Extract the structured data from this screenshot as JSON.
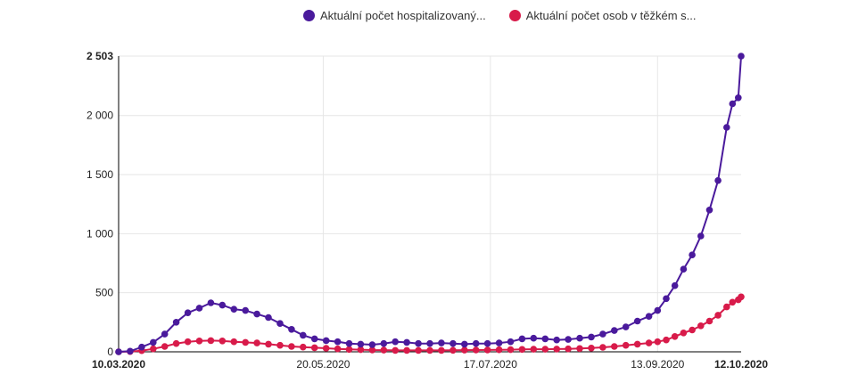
{
  "chart_data": {
    "type": "line",
    "title": "",
    "xlabel": "",
    "ylabel": "",
    "ylim": [
      0,
      2503
    ],
    "x_range": [
      "10.03.2020",
      "12.10.2020"
    ],
    "y_ticks": [
      {
        "value": 0,
        "label": "0"
      },
      {
        "value": 500,
        "label": "500"
      },
      {
        "value": 1000,
        "label": "1 000"
      },
      {
        "value": 1500,
        "label": "1 500"
      },
      {
        "value": 2000,
        "label": "2 000"
      },
      {
        "value": 2503,
        "label": "2 503",
        "bold": true
      }
    ],
    "x_ticks": [
      {
        "date": "10.03.2020",
        "label": "10.03.2020",
        "bold": true
      },
      {
        "date": "20.05.2020",
        "label": "20.05.2020"
      },
      {
        "date": "17.07.2020",
        "label": "17.07.2020"
      },
      {
        "date": "13.09.2020",
        "label": "13.09.2020"
      },
      {
        "date": "12.10.2020",
        "label": "12.10.2020",
        "bold": true
      }
    ],
    "grid": true,
    "legend_position": "top-right",
    "series": [
      {
        "name": "Aktuální počet hospitalizovaný...",
        "color": "#4a1a9c",
        "points": [
          [
            "10.03.2020",
            0
          ],
          [
            "14.03.2020",
            5
          ],
          [
            "18.03.2020",
            40
          ],
          [
            "22.03.2020",
            80
          ],
          [
            "26.03.2020",
            150
          ],
          [
            "30.03.2020",
            250
          ],
          [
            "03.04.2020",
            330
          ],
          [
            "07.04.2020",
            370
          ],
          [
            "11.04.2020",
            415
          ],
          [
            "15.04.2020",
            395
          ],
          [
            "19.04.2020",
            360
          ],
          [
            "23.04.2020",
            350
          ],
          [
            "27.04.2020",
            320
          ],
          [
            "01.05.2020",
            290
          ],
          [
            "05.05.2020",
            240
          ],
          [
            "09.05.2020",
            190
          ],
          [
            "13.05.2020",
            140
          ],
          [
            "17.05.2020",
            110
          ],
          [
            "21.05.2020",
            95
          ],
          [
            "25.05.2020",
            85
          ],
          [
            "29.05.2020",
            70
          ],
          [
            "02.06.2020",
            65
          ],
          [
            "06.06.2020",
            60
          ],
          [
            "10.06.2020",
            70
          ],
          [
            "14.06.2020",
            85
          ],
          [
            "18.06.2020",
            80
          ],
          [
            "22.06.2020",
            70
          ],
          [
            "26.06.2020",
            70
          ],
          [
            "30.06.2020",
            75
          ],
          [
            "04.07.2020",
            70
          ],
          [
            "08.07.2020",
            65
          ],
          [
            "12.07.2020",
            70
          ],
          [
            "16.07.2020",
            70
          ],
          [
            "20.07.2020",
            75
          ],
          [
            "24.07.2020",
            85
          ],
          [
            "28.07.2020",
            110
          ],
          [
            "01.08.2020",
            115
          ],
          [
            "05.08.2020",
            110
          ],
          [
            "09.08.2020",
            100
          ],
          [
            "13.08.2020",
            105
          ],
          [
            "17.08.2020",
            115
          ],
          [
            "21.08.2020",
            125
          ],
          [
            "25.08.2020",
            150
          ],
          [
            "29.08.2020",
            180
          ],
          [
            "02.09.2020",
            210
          ],
          [
            "06.09.2020",
            260
          ],
          [
            "10.09.2020",
            300
          ],
          [
            "13.09.2020",
            350
          ],
          [
            "16.09.2020",
            450
          ],
          [
            "19.09.2020",
            560
          ],
          [
            "22.09.2020",
            700
          ],
          [
            "25.09.2020",
            820
          ],
          [
            "28.09.2020",
            980
          ],
          [
            "01.10.2020",
            1200
          ],
          [
            "04.10.2020",
            1450
          ],
          [
            "07.10.2020",
            1900
          ],
          [
            "09.10.2020",
            2100
          ],
          [
            "11.10.2020",
            2150
          ],
          [
            "12.10.2020",
            2503
          ]
        ]
      },
      {
        "name": "Aktuální počet osob v těžkém s...",
        "color": "#d81b4a",
        "points": [
          [
            "10.03.2020",
            0
          ],
          [
            "14.03.2020",
            2
          ],
          [
            "18.03.2020",
            10
          ],
          [
            "22.03.2020",
            25
          ],
          [
            "26.03.2020",
            45
          ],
          [
            "30.03.2020",
            70
          ],
          [
            "03.04.2020",
            85
          ],
          [
            "07.04.2020",
            92
          ],
          [
            "11.04.2020",
            95
          ],
          [
            "15.04.2020",
            92
          ],
          [
            "19.04.2020",
            85
          ],
          [
            "23.04.2020",
            80
          ],
          [
            "27.04.2020",
            75
          ],
          [
            "01.05.2020",
            65
          ],
          [
            "05.05.2020",
            55
          ],
          [
            "09.05.2020",
            45
          ],
          [
            "13.05.2020",
            40
          ],
          [
            "17.05.2020",
            35
          ],
          [
            "21.05.2020",
            30
          ],
          [
            "25.05.2020",
            25
          ],
          [
            "29.05.2020",
            20
          ],
          [
            "02.06.2020",
            18
          ],
          [
            "06.06.2020",
            15
          ],
          [
            "10.06.2020",
            14
          ],
          [
            "14.06.2020",
            12
          ],
          [
            "18.06.2020",
            12
          ],
          [
            "22.06.2020",
            12
          ],
          [
            "26.06.2020",
            12
          ],
          [
            "30.06.2020",
            12
          ],
          [
            "04.07.2020",
            13
          ],
          [
            "08.07.2020",
            14
          ],
          [
            "12.07.2020",
            15
          ],
          [
            "16.07.2020",
            16
          ],
          [
            "20.07.2020",
            17
          ],
          [
            "24.07.2020",
            18
          ],
          [
            "28.07.2020",
            20
          ],
          [
            "01.08.2020",
            22
          ],
          [
            "05.08.2020",
            22
          ],
          [
            "09.08.2020",
            23
          ],
          [
            "13.08.2020",
            25
          ],
          [
            "17.08.2020",
            28
          ],
          [
            "21.08.2020",
            32
          ],
          [
            "25.08.2020",
            38
          ],
          [
            "29.08.2020",
            45
          ],
          [
            "02.09.2020",
            55
          ],
          [
            "06.09.2020",
            65
          ],
          [
            "10.09.2020",
            75
          ],
          [
            "13.09.2020",
            85
          ],
          [
            "16.09.2020",
            100
          ],
          [
            "19.09.2020",
            130
          ],
          [
            "22.09.2020",
            160
          ],
          [
            "25.09.2020",
            185
          ],
          [
            "28.09.2020",
            220
          ],
          [
            "01.10.2020",
            260
          ],
          [
            "04.10.2020",
            310
          ],
          [
            "07.10.2020",
            380
          ],
          [
            "09.10.2020",
            420
          ],
          [
            "11.10.2020",
            440
          ],
          [
            "12.10.2020",
            465
          ]
        ]
      }
    ]
  }
}
